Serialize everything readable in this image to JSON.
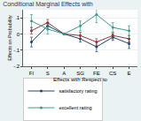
{
  "chart_data": {
    "type": "line",
    "title": "Conditional Marginal Effects with",
    "x_label": "Effects with Respect to",
    "y_label": "Effects on Probability",
    "categories": [
      "FI",
      "S",
      "A",
      "SG",
      "FE",
      "CS",
      "E"
    ],
    "series": [
      {
        "name": "satisfactory rating",
        "color": "#1a476f",
        "marker": "circle",
        "values": [
          -0.05,
          0.05,
          0,
          -0.03,
          -0.08,
          -0.02,
          -0.06
        ],
        "errors": [
          0.03,
          0.02,
          0,
          0.02,
          0.03,
          0.02,
          0.03
        ]
      },
      {
        "color": "#90353b",
        "marker": "circle",
        "values": [
          0.02,
          0.07,
          0,
          -0.01,
          -0.05,
          -0.01,
          -0.03
        ],
        "errors": [
          0.02,
          0.02,
          0,
          0.02,
          0.02,
          0.02,
          0.02
        ]
      },
      {
        "name": "excellent rating",
        "color": "#3a9a8a",
        "marker": "circle",
        "values": [
          0.08,
          0.03,
          0,
          0.05,
          0.12,
          0.04,
          0.02
        ],
        "errors": [
          0.04,
          0.03,
          0,
          0.03,
          0.05,
          0.03,
          0.03
        ]
      }
    ],
    "ylim": [
      -0.2,
      0.15
    ],
    "yticks": [
      {
        "value": -0.2,
        "label": "-.2"
      },
      {
        "value": -0.1,
        "label": "-.1"
      },
      0,
      {
        "value": 0.1,
        "label": ".1"
      }
    ],
    "grid": true,
    "legend": "bottom"
  }
}
